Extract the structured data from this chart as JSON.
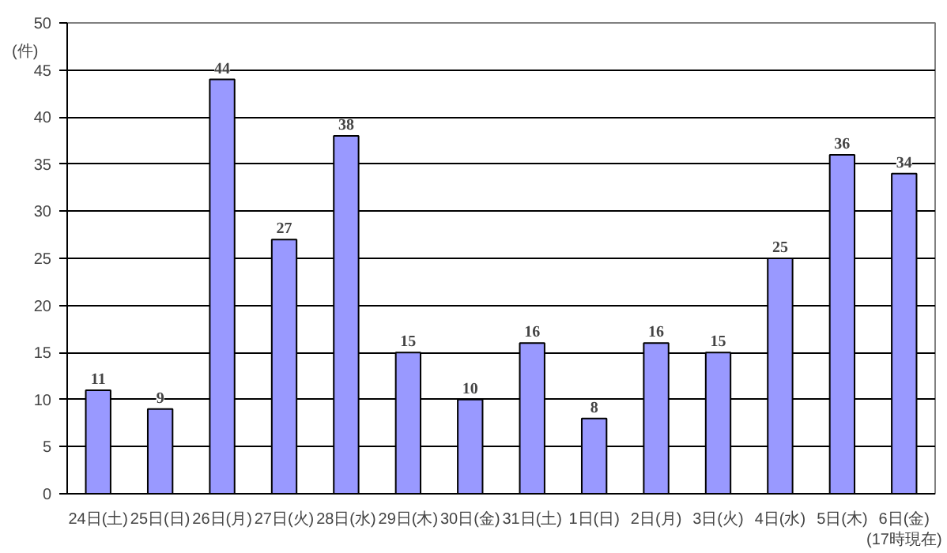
{
  "chart_data": {
    "type": "bar",
    "ylabel": "(件)",
    "categories": [
      "24日(土)",
      "25日(日)",
      "26日(月)",
      "27日(火)",
      "28日(水)",
      "29日(木)",
      "30日(金)",
      "31日(土)",
      "1日(日)",
      "2日(月)",
      "3日(火)",
      "4日(水)",
      "5日(木)",
      "6日(金)\n(17時現在)"
    ],
    "values": [
      11,
      9,
      44,
      27,
      38,
      15,
      10,
      16,
      8,
      16,
      15,
      25,
      36,
      34
    ],
    "color": "#9999ff",
    "ylim": [
      0,
      50
    ],
    "yticks": [
      0,
      5,
      10,
      15,
      20,
      25,
      30,
      35,
      40,
      45,
      50
    ],
    "grid": "y",
    "data_labels": true
  }
}
